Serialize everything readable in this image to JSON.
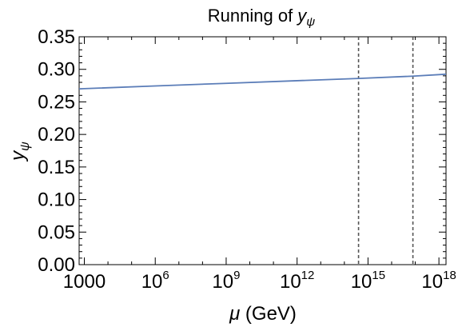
{
  "chart_data": {
    "type": "line",
    "title_prefix": "Running of ",
    "title_symbol": "y",
    "title_subscript": "ψ",
    "xlabel_symbol": "μ",
    "xlabel_unit": " (GeV)",
    "ylabel_symbol": "y",
    "ylabel_subscript": "ψ",
    "x_scale": "log",
    "x_range_log10": [
      2.78,
      18.3
    ],
    "ylim": [
      0,
      0.35
    ],
    "x_ticks": [
      {
        "value_log10": 3,
        "base": "1000",
        "exp": ""
      },
      {
        "value_log10": 6,
        "base": "10",
        "exp": "6"
      },
      {
        "value_log10": 9,
        "base": "10",
        "exp": "9"
      },
      {
        "value_log10": 12,
        "base": "10",
        "exp": "12"
      },
      {
        "value_log10": 15,
        "base": "10",
        "exp": "15"
      },
      {
        "value_log10": 18,
        "base": "10",
        "exp": "18"
      }
    ],
    "y_ticks": [
      "0.00",
      "0.05",
      "0.10",
      "0.15",
      "0.20",
      "0.25",
      "0.30",
      "0.35"
    ],
    "grid": false,
    "series": [
      {
        "color": "#5b7db8",
        "points_log10mu": [
          [
            2.78,
            0.27
          ],
          [
            6,
            0.2745
          ],
          [
            9,
            0.2785
          ],
          [
            12,
            0.2825
          ],
          [
            14.6,
            0.286
          ],
          [
            16.9,
            0.2895
          ],
          [
            18.3,
            0.2925
          ]
        ]
      }
    ],
    "vertical_markers": [
      {
        "value_log10": 14.6,
        "style": "dashed",
        "color": "#555555"
      },
      {
        "value_log10": 16.9,
        "style": "dashed",
        "color": "#555555"
      }
    ]
  }
}
